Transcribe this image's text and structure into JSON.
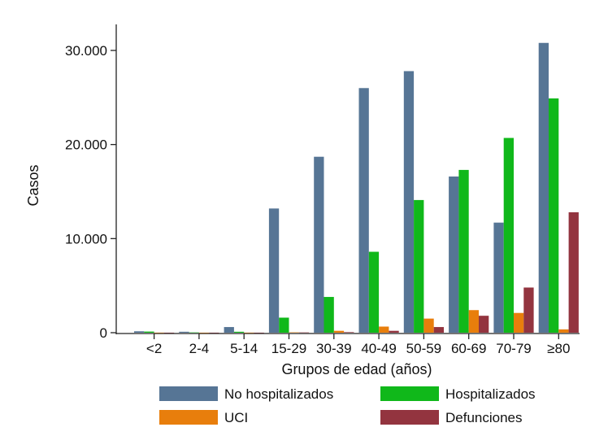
{
  "chart_data": {
    "type": "bar",
    "title": "",
    "xlabel": "Grupos de edad (años)",
    "ylabel": "Casos",
    "ylim": [
      0,
      33000
    ],
    "yticks": [
      0,
      10000,
      20000,
      30000
    ],
    "ytick_labels": [
      "0",
      "10.000",
      "20.000",
      "30.000"
    ],
    "categories": [
      "<2",
      "2-4",
      "5-14",
      "15-29",
      "30-39",
      "40-49",
      "50-59",
      "60-69",
      "70-79",
      "≥80"
    ],
    "series": [
      {
        "name": "No hospitalizados",
        "color": "#567595",
        "values": [
          150,
          100,
          600,
          13200,
          18700,
          26000,
          27800,
          16600,
          11700,
          30800
        ]
      },
      {
        "name": "Hospitalizados",
        "color": "#10B81A",
        "values": [
          120,
          30,
          100,
          1600,
          3800,
          8600,
          14100,
          17300,
          20700,
          24900
        ]
      },
      {
        "name": "UCI",
        "color": "#E87E0C",
        "values": [
          10,
          5,
          10,
          40,
          200,
          650,
          1500,
          2400,
          2100,
          350
        ]
      },
      {
        "name": "Defunciones",
        "color": "#93343F",
        "values": [
          5,
          5,
          5,
          30,
          60,
          200,
          600,
          1800,
          4800,
          12800
        ]
      }
    ],
    "grid": false,
    "legend_position": "bottom"
  }
}
